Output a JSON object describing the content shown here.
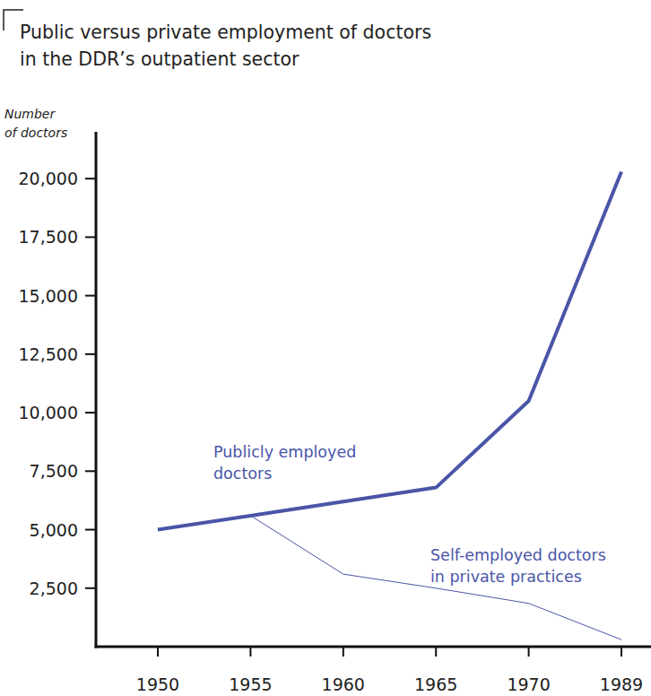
{
  "chart_data": {
    "type": "line",
    "title": "Public versus private employment of doctors in the DDR’s outpatient sector",
    "y_label": "Number of doctors",
    "categories": [
      "1950",
      "1955",
      "1960",
      "1965",
      "1970",
      "1989"
    ],
    "series": [
      {
        "name": "Publicly employed doctors",
        "color": "#4a55a8",
        "line_style": "solid",
        "values": [
          5000,
          5600,
          6200,
          6800,
          10500,
          20300
        ]
      },
      {
        "name": "Self-employed doctors in private practices",
        "color": "#4a55a8",
        "line_style": "solid",
        "values": [
          null,
          5600,
          3100,
          2500,
          1850,
          300
        ]
      }
    ],
    "ylim": [
      0,
      22000
    ],
    "yticks": [
      {
        "value": 2500,
        "label": "2,500"
      },
      {
        "value": 5000,
        "label": "5,000"
      },
      {
        "value": 7500,
        "label": "7,500"
      },
      {
        "value": 10000,
        "label": "10,000"
      },
      {
        "value": 12500,
        "label": "12,500"
      },
      {
        "value": 15000,
        "label": "15,000"
      },
      {
        "value": 17500,
        "label": "17,500"
      },
      {
        "value": 20000,
        "label": "20,000"
      }
    ],
    "grid": false
  }
}
